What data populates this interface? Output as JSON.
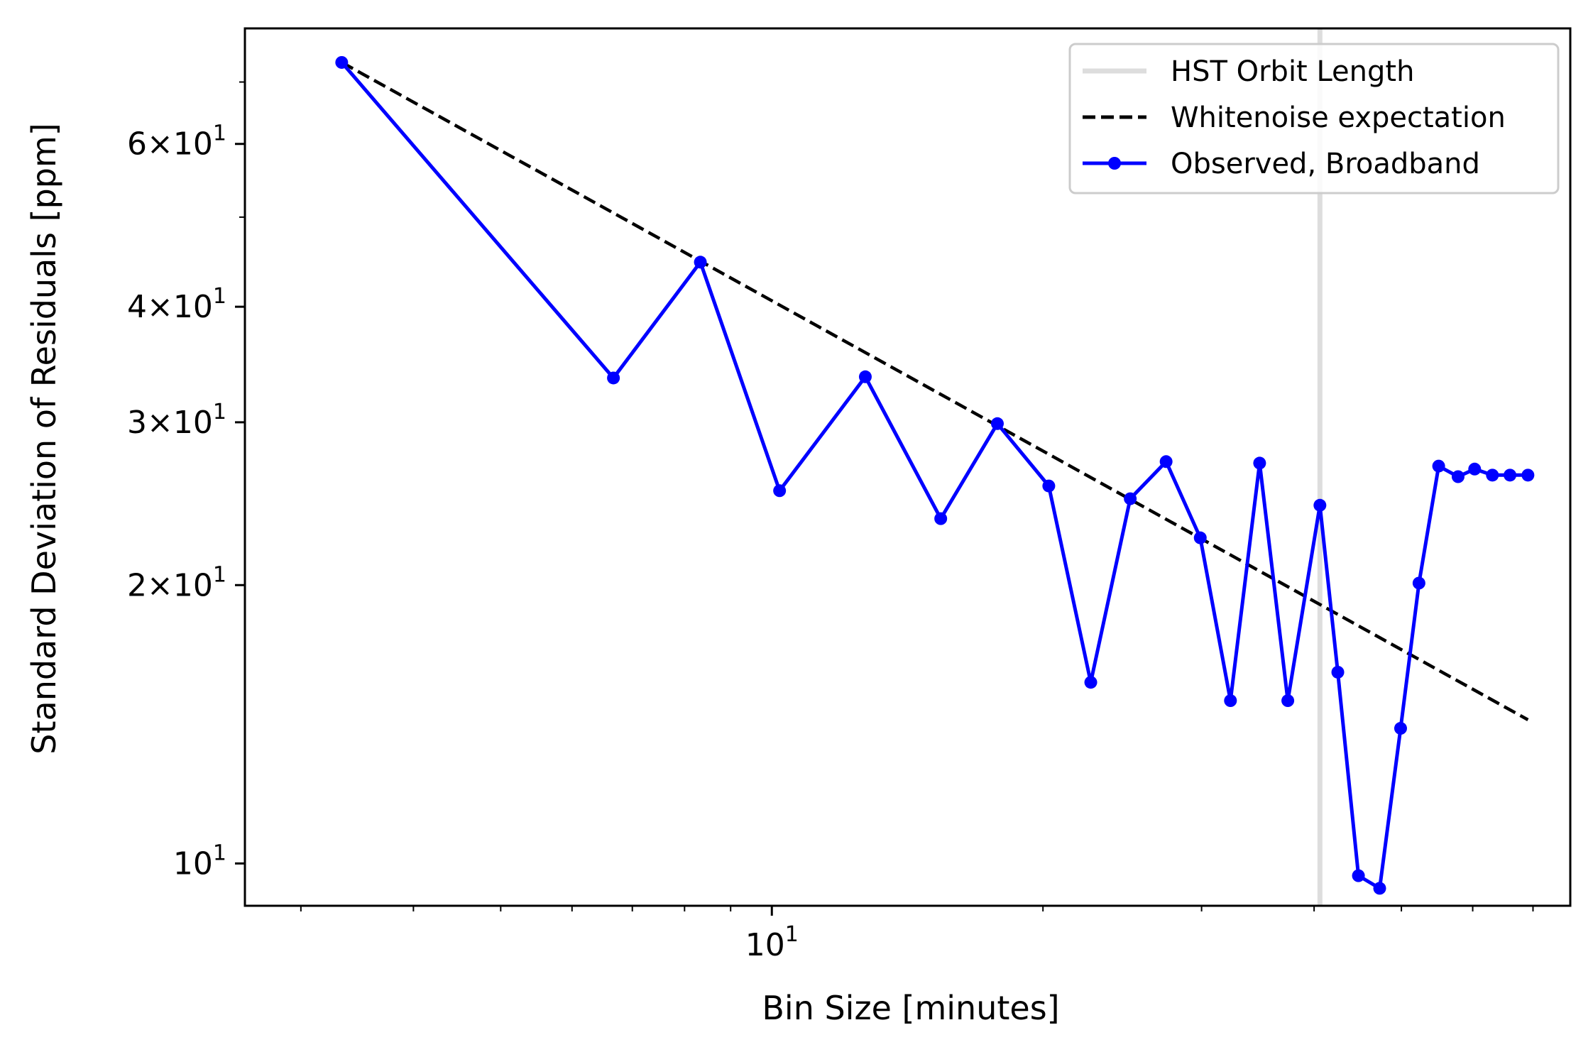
{
  "chart_data": {
    "type": "line",
    "xlabel": "Bin Size [minutes]",
    "ylabel": "Standard Deviation of Residuals [ppm]",
    "x_scale": "log",
    "y_scale": "log",
    "xlim": [
      2.6,
      77
    ],
    "ylim": [
      9.0,
      80
    ],
    "x_ticks": [
      {
        "value": 10,
        "base": "10",
        "exp": "1"
      }
    ],
    "y_ticks": [
      {
        "value": 10,
        "coef": "",
        "base": "10",
        "exp": "1"
      },
      {
        "value": 20,
        "coef": "2",
        "base": "10",
        "exp": "1"
      },
      {
        "value": 30,
        "coef": "3",
        "base": "10",
        "exp": "1"
      },
      {
        "value": 40,
        "coef": "4",
        "base": "10",
        "exp": "1"
      },
      {
        "value": 60,
        "coef": "6",
        "base": "10",
        "exp": "1"
      }
    ],
    "grid": false,
    "legend_position": "top-right",
    "vline": {
      "name": "HST Orbit Length",
      "x": 40.6,
      "color": "#dddddd"
    },
    "series": [
      {
        "name": "Whitenoise expectation",
        "style": "dashed",
        "color": "#000000",
        "x": [
          3.33,
          69.1
        ],
        "y": [
          73.5,
          14.3
        ]
      },
      {
        "name": "Observed, Broadband",
        "style": "solid-markers",
        "color": "#0000ff",
        "x": [
          3.33,
          6.67,
          8.33,
          10.2,
          12.7,
          15.4,
          17.8,
          20.3,
          22.6,
          25.0,
          27.4,
          29.9,
          32.3,
          34.8,
          37.4,
          40.6,
          42.5,
          44.8,
          47.3,
          49.9,
          52.3,
          55.0,
          57.8,
          60.3,
          63.1,
          66.0,
          69.1
        ],
        "y": [
          73.5,
          33.5,
          44.7,
          25.3,
          33.6,
          23.6,
          29.9,
          25.6,
          15.7,
          24.8,
          27.2,
          22.5,
          15.0,
          27.1,
          15.0,
          24.4,
          16.1,
          9.7,
          9.4,
          14.0,
          20.1,
          26.9,
          26.2,
          26.7,
          26.3,
          26.3,
          26.3
        ]
      }
    ]
  }
}
